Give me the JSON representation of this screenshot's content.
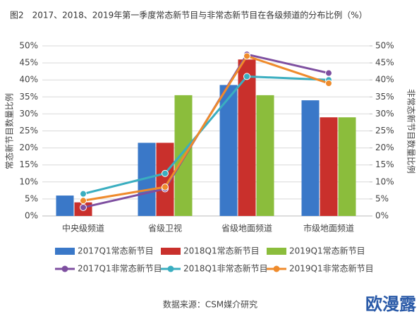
{
  "chart_data": {
    "type": "bar",
    "title": "图2　2017、2018、2019年第一季度常态新节目与非常态新节目在各级频道的分布比例（%）",
    "y_label": "常态新节目数量比例",
    "y2_label": "非常态新节目数量比例",
    "categories": [
      "中央级频道",
      "省级卫视",
      "省级地面频道",
      "市级地面频道"
    ],
    "series": [
      {
        "name": "2017Q1常态新节目",
        "type": "bar",
        "color": "#3a78c8",
        "values": [
          6,
          21.5,
          38.5,
          34
        ]
      },
      {
        "name": "2018Q1常态新节目",
        "type": "bar",
        "color": "#c9302c",
        "values": [
          4,
          21.5,
          46,
          29
        ]
      },
      {
        "name": "2019Q1常态新节目",
        "type": "bar",
        "color": "#8bbd3c",
        "values": [
          0,
          35.5,
          35.5,
          29
        ]
      },
      {
        "name": "2017Q1非常态新节目",
        "type": "line",
        "axis": "y2",
        "color": "#7e4fa0",
        "values": [
          2.5,
          8,
          47.5,
          42
        ]
      },
      {
        "name": "2018Q1非常态新节目",
        "type": "line",
        "axis": "y2",
        "color": "#3aaec0",
        "values": [
          6.5,
          12.5,
          41,
          40
        ]
      },
      {
        "name": "2019Q1非常态新节目",
        "type": "line",
        "axis": "y2",
        "color": "#ef8b2c",
        "values": [
          4.5,
          8.5,
          47,
          39
        ]
      }
    ],
    "ylim": [
      0,
      50
    ],
    "yticks": [
      {
        "value": 0,
        "label": "0%"
      },
      {
        "value": 5,
        "label": "5%"
      },
      {
        "value": 10,
        "label": "10%"
      },
      {
        "value": 15,
        "label": "15%"
      },
      {
        "value": 20,
        "label": "20%"
      },
      {
        "value": 25,
        "label": "25%"
      },
      {
        "value": 30,
        "label": "30%"
      },
      {
        "value": 35,
        "label": "35%"
      },
      {
        "value": 40,
        "label": "40%"
      },
      {
        "value": 45,
        "label": "45%"
      },
      {
        "value": 50,
        "label": "50%"
      }
    ],
    "y2lim": [
      0,
      50
    ],
    "y2ticks": [
      {
        "value": 0,
        "label": "0%"
      },
      {
        "value": 5,
        "label": "5%"
      },
      {
        "value": 10,
        "label": "10%"
      },
      {
        "value": 15,
        "label": "15%"
      },
      {
        "value": 20,
        "label": "20%"
      },
      {
        "value": 25,
        "label": "25%"
      },
      {
        "value": 30,
        "label": "30%"
      },
      {
        "value": 35,
        "label": "35%"
      },
      {
        "value": 40,
        "label": "40%"
      },
      {
        "value": 45,
        "label": "45%"
      },
      {
        "value": 50,
        "label": "50%"
      }
    ],
    "grid": true,
    "source": "数据来源：CSM媒介研究",
    "watermark": "欧漫露"
  }
}
